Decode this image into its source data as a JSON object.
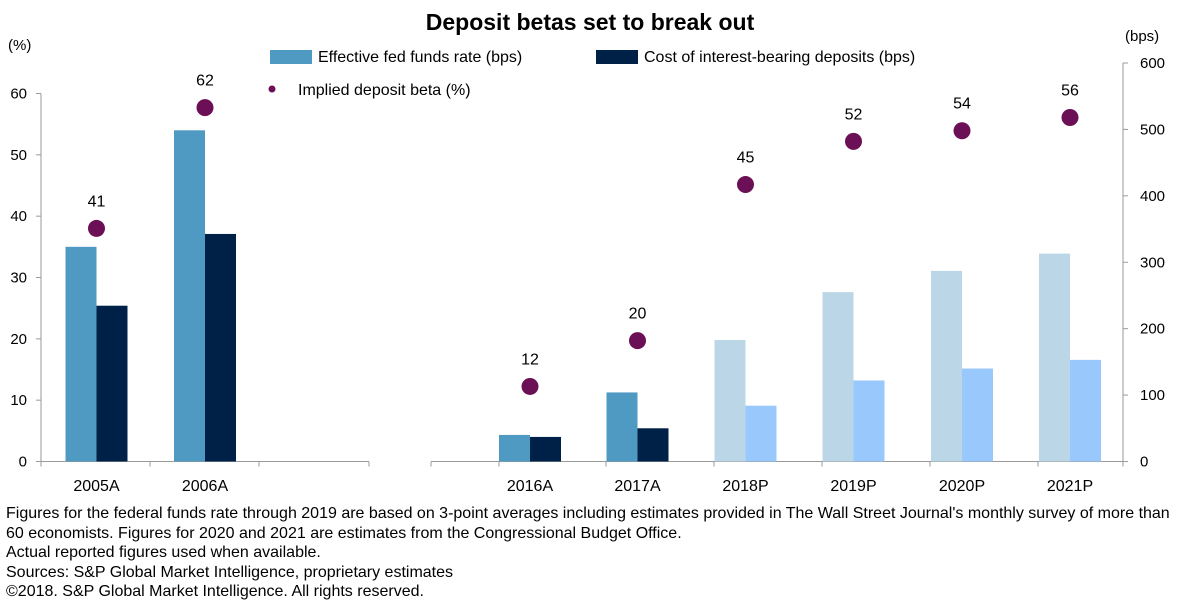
{
  "chart_data": {
    "type": "bar",
    "title": "Deposit betas set to break out",
    "left_axis": {
      "unit": "(%)",
      "ylim": [
        0,
        60
      ],
      "ticks": [
        0,
        10,
        20,
        30,
        40,
        50,
        60
      ]
    },
    "right_axis": {
      "unit": "(bps)",
      "ylim": [
        0,
        600
      ],
      "ticks": [
        0,
        100,
        200,
        300,
        400,
        500,
        600
      ]
    },
    "legend": {
      "position": "top-center",
      "entries": [
        {
          "name": "Effective fed funds rate (bps)",
          "color": "#4f9ac3"
        },
        {
          "name": "Cost of interest-bearing deposits (bps)",
          "color": "#002147"
        },
        {
          "name": "Implied deposit beta (%)",
          "color": "#6b0f56"
        }
      ]
    },
    "panels": [
      {
        "axis": "left",
        "categories": [
          "2005A",
          "2006A"
        ],
        "series": [
          {
            "name": "Effective fed funds rate (bps)",
            "values": [
              35,
              54
            ],
            "colors": [
              "#4f9ac3",
              "#4f9ac3"
            ]
          },
          {
            "name": "Cost of interest-bearing deposits (bps)",
            "values": [
              25.4,
              37.1
            ],
            "colors": [
              "#002147",
              "#002147"
            ]
          }
        ],
        "beta": {
          "name": "Implied deposit beta (%)",
          "values": [
            41,
            62
          ],
          "positions": [
            38,
            57.7
          ]
        }
      },
      {
        "axis": "right",
        "categories": [
          "2016A",
          "2017A",
          "2018P",
          "2019P",
          "2020P",
          "2021P"
        ],
        "series": [
          {
            "name": "Effective fed funds rate (bps)",
            "values": [
              40,
              104,
              183,
              255,
              287,
              313
            ],
            "colors": [
              "#4f9ac3",
              "#4f9ac3",
              "#bbd7e7",
              "#bbd7e7",
              "#bbd7e7",
              "#bbd7e7"
            ]
          },
          {
            "name": "Cost of interest-bearing deposits (bps)",
            "values": [
              37,
              50,
              84,
              122,
              140,
              153
            ],
            "colors": [
              "#002147",
              "#002147",
              "#99c8fc",
              "#99c8fc",
              "#99c8fc",
              "#99c8fc"
            ]
          }
        ],
        "beta": {
          "name": "Implied deposit beta (%)",
          "values": [
            12,
            20,
            45,
            52,
            54,
            56
          ],
          "positions": [
            113,
            182,
            417,
            482,
            498,
            518
          ]
        }
      }
    ]
  },
  "notes": [
    "Figures for the federal funds rate through 2019 are based on 3-point averages including estimates provided in The Wall Street Journal's monthly survey of more than 60 economists. Figures for 2020 and 2021 are estimates from the Congressional Budget Office.",
    "Actual reported figures used when available.",
    "Sources: S&P Global Market Intelligence, proprietary estimates",
    "©2018. S&P Global Market Intelligence. All rights reserved."
  ]
}
